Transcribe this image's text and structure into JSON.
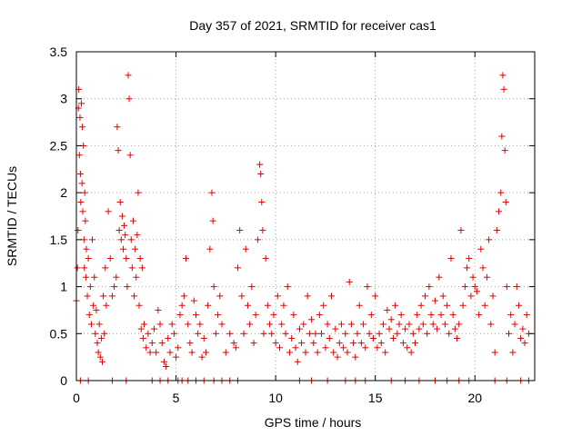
{
  "chart_data": {
    "type": "scatter",
    "title": "Day 357 of 2021, SRMTID for receiver cas1",
    "xlabel": "GPS time / hours",
    "ylabel": "SRMTID / TECUs",
    "xlim": [
      0,
      23
    ],
    "ylim": [
      0,
      3.5
    ],
    "xticks": [
      0,
      5,
      10,
      15,
      20
    ],
    "xtick_labels": [
      "0",
      "5",
      "10",
      "15",
      "20"
    ],
    "yticks": [
      0,
      0.5,
      1,
      1.5,
      2,
      2.5,
      3,
      3.5
    ],
    "ytick_labels": [
      "0",
      "0.5",
      "1",
      "1.5",
      "2",
      "2.5",
      "3",
      "3.5"
    ],
    "grid": true,
    "marker": "+",
    "series": [
      {
        "name": "SRMTID",
        "color": "#e00000",
        "points": [
          [
            0.0,
            0.85
          ],
          [
            0.05,
            1.2
          ],
          [
            0.08,
            1.6
          ],
          [
            0.1,
            2.9
          ],
          [
            0.12,
            3.1
          ],
          [
            0.15,
            2.4
          ],
          [
            0.18,
            2.8
          ],
          [
            0.2,
            2.2
          ],
          [
            0.22,
            1.9
          ],
          [
            0.25,
            2.95
          ],
          [
            0.28,
            2.1
          ],
          [
            0.3,
            2.7
          ],
          [
            0.32,
            1.8
          ],
          [
            0.35,
            2.5
          ],
          [
            0.38,
            1.5
          ],
          [
            0.4,
            1.2
          ],
          [
            0.42,
            2.0
          ],
          [
            0.45,
            1.7
          ],
          [
            0.48,
            1.1
          ],
          [
            0.5,
            1.4
          ],
          [
            0.55,
            0.9
          ],
          [
            0.6,
            1.3
          ],
          [
            0.65,
            0.7
          ],
          [
            0.7,
            1.0
          ],
          [
            0.75,
            0.6
          ],
          [
            0.8,
            1.5
          ],
          [
            0.85,
            0.8
          ],
          [
            0.9,
            1.1
          ],
          [
            0.95,
            0.5
          ],
          [
            1.0,
            0.75
          ],
          [
            1.05,
            0.4
          ],
          [
            1.1,
            0.3
          ],
          [
            1.15,
            0.6
          ],
          [
            1.2,
            0.25
          ],
          [
            1.25,
            0.45
          ],
          [
            1.3,
            0.2
          ],
          [
            1.35,
            0.9
          ],
          [
            1.4,
            0.5
          ],
          [
            1.45,
            1.2
          ],
          [
            1.5,
            0.8
          ],
          [
            1.6,
            1.8
          ],
          [
            1.7,
            1.3
          ],
          [
            1.8,
            0.9
          ],
          [
            1.9,
            1.0
          ],
          [
            2.0,
            1.1
          ],
          [
            2.05,
            2.7
          ],
          [
            2.1,
            2.45
          ],
          [
            2.15,
            1.6
          ],
          [
            2.2,
            1.9
          ],
          [
            2.25,
            1.5
          ],
          [
            2.3,
            1.75
          ],
          [
            2.35,
            1.4
          ],
          [
            2.4,
            1.65
          ],
          [
            2.45,
            1.55
          ],
          [
            2.5,
            1.3
          ],
          [
            2.55,
            1.0
          ],
          [
            2.6,
            3.25
          ],
          [
            2.65,
            3.0
          ],
          [
            2.7,
            2.4
          ],
          [
            2.75,
            1.5
          ],
          [
            2.8,
            1.2
          ],
          [
            2.85,
            1.7
          ],
          [
            2.9,
            0.9
          ],
          [
            2.95,
            1.4
          ],
          [
            3.0,
            1.1
          ],
          [
            3.05,
            1.55
          ],
          [
            3.1,
            2.0
          ],
          [
            3.15,
            0.8
          ],
          [
            3.2,
            1.3
          ],
          [
            3.25,
            0.55
          ],
          [
            3.3,
            1.2
          ],
          [
            3.35,
            0.45
          ],
          [
            3.4,
            0.6
          ],
          [
            3.5,
            0.35
          ],
          [
            3.6,
            0.5
          ],
          [
            3.7,
            0.3
          ],
          [
            3.8,
            0.4
          ],
          [
            3.9,
            0.55
          ],
          [
            4.0,
            0.3
          ],
          [
            4.1,
            0.75
          ],
          [
            4.2,
            0.6
          ],
          [
            4.3,
            0.4
          ],
          [
            4.4,
            0.2
          ],
          [
            4.5,
            0.15
          ],
          [
            4.6,
            0.45
          ],
          [
            4.7,
            0.3
          ],
          [
            4.8,
            0.6
          ],
          [
            4.9,
            0.5
          ],
          [
            5.0,
            0.25
          ],
          [
            5.1,
            0.35
          ],
          [
            5.2,
            0.7
          ],
          [
            5.3,
            0.8
          ],
          [
            5.4,
            0.9
          ],
          [
            5.5,
            1.3
          ],
          [
            5.6,
            0.6
          ],
          [
            5.7,
            0.4
          ],
          [
            5.8,
            0.3
          ],
          [
            5.9,
            0.85
          ],
          [
            6.0,
            0.7
          ],
          [
            6.1,
            0.5
          ],
          [
            6.2,
            0.6
          ],
          [
            6.3,
            0.25
          ],
          [
            6.4,
            0.45
          ],
          [
            6.5,
            0.3
          ],
          [
            6.6,
            0.8
          ],
          [
            6.7,
            1.4
          ],
          [
            6.8,
            2.0
          ],
          [
            6.85,
            1.7
          ],
          [
            6.9,
            1.0
          ],
          [
            7.0,
            0.5
          ],
          [
            7.1,
            0.7
          ],
          [
            7.2,
            0.9
          ],
          [
            7.3,
            0.6
          ],
          [
            7.5,
            0.3
          ],
          [
            7.7,
            0.5
          ],
          [
            7.9,
            0.4
          ],
          [
            8.0,
            0.35
          ],
          [
            8.1,
            1.2
          ],
          [
            8.2,
            1.6
          ],
          [
            8.3,
            0.9
          ],
          [
            8.4,
            0.5
          ],
          [
            8.5,
            1.4
          ],
          [
            8.6,
            0.8
          ],
          [
            8.7,
            0.6
          ],
          [
            8.8,
            1.0
          ],
          [
            8.9,
            0.4
          ],
          [
            9.0,
            0.7
          ],
          [
            9.1,
            1.5
          ],
          [
            9.2,
            2.3
          ],
          [
            9.25,
            2.2
          ],
          [
            9.3,
            1.9
          ],
          [
            9.35,
            1.6
          ],
          [
            9.4,
            0.5
          ],
          [
            9.5,
            1.3
          ],
          [
            9.6,
            0.8
          ],
          [
            9.7,
            0.6
          ],
          [
            9.8,
            0.5
          ],
          [
            9.9,
            0.7
          ],
          [
            10.0,
            0.4
          ],
          [
            10.1,
            0.9
          ],
          [
            10.2,
            0.35
          ],
          [
            10.3,
            0.6
          ],
          [
            10.4,
            0.8
          ],
          [
            10.5,
            0.5
          ],
          [
            10.6,
            1.0
          ],
          [
            10.7,
            0.3
          ],
          [
            10.8,
            0.45
          ],
          [
            10.9,
            0.7
          ],
          [
            11.0,
            0.35
          ],
          [
            11.1,
            0.2
          ],
          [
            11.2,
            0.55
          ],
          [
            11.3,
            0.4
          ],
          [
            11.4,
            0.6
          ],
          [
            11.5,
            0.3
          ],
          [
            11.6,
            0.9
          ],
          [
            11.7,
            0.5
          ],
          [
            11.8,
            0.65
          ],
          [
            11.9,
            0.4
          ],
          [
            12.0,
            0.5
          ],
          [
            12.1,
            0.3
          ],
          [
            12.2,
            0.7
          ],
          [
            12.3,
            0.5
          ],
          [
            12.4,
            0.8
          ],
          [
            12.5,
            0.35
          ],
          [
            12.6,
            0.6
          ],
          [
            12.7,
            0.45
          ],
          [
            12.8,
            0.9
          ],
          [
            12.9,
            0.3
          ],
          [
            13.0,
            0.55
          ],
          [
            13.1,
            0.25
          ],
          [
            13.2,
            0.4
          ],
          [
            13.3,
            0.6
          ],
          [
            13.4,
            0.35
          ],
          [
            13.5,
            0.5
          ],
          [
            13.6,
            0.3
          ],
          [
            13.7,
            1.05
          ],
          [
            13.8,
            0.6
          ],
          [
            13.9,
            0.4
          ],
          [
            14.0,
            0.25
          ],
          [
            14.1,
            0.5
          ],
          [
            14.2,
            0.8
          ],
          [
            14.3,
            0.4
          ],
          [
            14.4,
            0.6
          ],
          [
            14.5,
            0.35
          ],
          [
            14.6,
            1.0
          ],
          [
            14.7,
            0.5
          ],
          [
            14.8,
            0.7
          ],
          [
            14.9,
            0.45
          ],
          [
            15.0,
            0.9
          ],
          [
            15.1,
            0.35
          ],
          [
            15.2,
            0.5
          ],
          [
            15.3,
            0.4
          ],
          [
            15.4,
            0.6
          ],
          [
            15.5,
            0.3
          ],
          [
            15.6,
            0.75
          ],
          [
            15.7,
            0.55
          ],
          [
            15.8,
            0.65
          ],
          [
            15.9,
            0.45
          ],
          [
            16.0,
            0.8
          ],
          [
            16.1,
            0.5
          ],
          [
            16.2,
            0.6
          ],
          [
            16.3,
            0.7
          ],
          [
            16.4,
            0.4
          ],
          [
            16.5,
            0.55
          ],
          [
            16.6,
            0.35
          ],
          [
            16.7,
            0.6
          ],
          [
            16.8,
            0.3
          ],
          [
            16.9,
            0.5
          ],
          [
            17.0,
            0.4
          ],
          [
            17.1,
            0.7
          ],
          [
            17.2,
            0.55
          ],
          [
            17.3,
            0.8
          ],
          [
            17.4,
            0.6
          ],
          [
            17.5,
            0.9
          ],
          [
            17.6,
            0.5
          ],
          [
            17.7,
            1.0
          ],
          [
            17.8,
            0.7
          ],
          [
            17.9,
            0.6
          ],
          [
            18.0,
            0.85
          ],
          [
            18.1,
            0.55
          ],
          [
            18.2,
            1.1
          ],
          [
            18.3,
            0.7
          ],
          [
            18.4,
            0.9
          ],
          [
            18.5,
            0.6
          ],
          [
            18.6,
            0.8
          ],
          [
            18.7,
            0.5
          ],
          [
            18.8,
            1.3
          ],
          [
            18.9,
            0.7
          ],
          [
            19.0,
            0.55
          ],
          [
            19.1,
            0.45
          ],
          [
            19.2,
            0.6
          ],
          [
            19.3,
            1.6
          ],
          [
            19.4,
            0.8
          ],
          [
            19.5,
            1.0
          ],
          [
            19.6,
            1.2
          ],
          [
            19.7,
            1.3
          ],
          [
            19.8,
            0.9
          ],
          [
            19.9,
            1.1
          ],
          [
            20.0,
            1.0
          ],
          [
            20.1,
            0.95
          ],
          [
            20.2,
            0.7
          ],
          [
            20.3,
            1.4
          ],
          [
            20.4,
            1.2
          ],
          [
            20.5,
            0.8
          ],
          [
            20.6,
            1.1
          ],
          [
            20.7,
            1.5
          ],
          [
            20.8,
            0.6
          ],
          [
            20.9,
            0.9
          ],
          [
            21.0,
            0.3
          ],
          [
            21.1,
            1.6
          ],
          [
            21.2,
            1.8
          ],
          [
            21.3,
            2.0
          ],
          [
            21.35,
            2.6
          ],
          [
            21.4,
            3.25
          ],
          [
            21.45,
            3.1
          ],
          [
            21.5,
            2.45
          ],
          [
            21.55,
            1.9
          ],
          [
            21.6,
            1.0
          ],
          [
            21.7,
            0.5
          ],
          [
            21.8,
            0.7
          ],
          [
            21.9,
            0.3
          ],
          [
            22.0,
            0.6
          ],
          [
            22.1,
            1.0
          ],
          [
            22.2,
            0.8
          ],
          [
            22.3,
            0.45
          ],
          [
            22.4,
            0.55
          ],
          [
            22.5,
            0.4
          ],
          [
            22.6,
            0.7
          ],
          [
            22.7,
            0.5
          ],
          [
            0.2,
            0.0
          ],
          [
            0.6,
            0.0
          ],
          [
            1.8,
            0.0
          ],
          [
            2.5,
            0.0
          ],
          [
            3.8,
            0.0
          ],
          [
            4.2,
            0.0
          ],
          [
            4.6,
            0.0
          ],
          [
            5.1,
            0.0
          ],
          [
            5.3,
            0.0
          ],
          [
            5.6,
            0.0
          ],
          [
            6.0,
            0.0
          ],
          [
            6.4,
            0.0
          ],
          [
            6.9,
            0.0
          ],
          [
            7.3,
            0.0
          ],
          [
            7.7,
            0.0
          ],
          [
            8.1,
            0.0
          ],
          [
            11.2,
            0.0
          ],
          [
            11.8,
            0.0
          ],
          [
            12.6,
            0.0
          ],
          [
            13.5,
            0.0
          ],
          [
            14.0,
            0.0
          ],
          [
            14.5,
            0.0
          ],
          [
            15.8,
            0.0
          ],
          [
            16.5,
            0.0
          ],
          [
            17.2,
            0.0
          ],
          [
            18.0,
            0.0
          ],
          [
            18.6,
            0.0
          ],
          [
            19.2,
            0.0
          ],
          [
            19.7,
            0.0
          ],
          [
            21.0,
            0.0
          ],
          [
            21.6,
            0.0
          ],
          [
            22.3,
            0.0
          ],
          [
            22.7,
            0.0
          ]
        ]
      }
    ]
  }
}
